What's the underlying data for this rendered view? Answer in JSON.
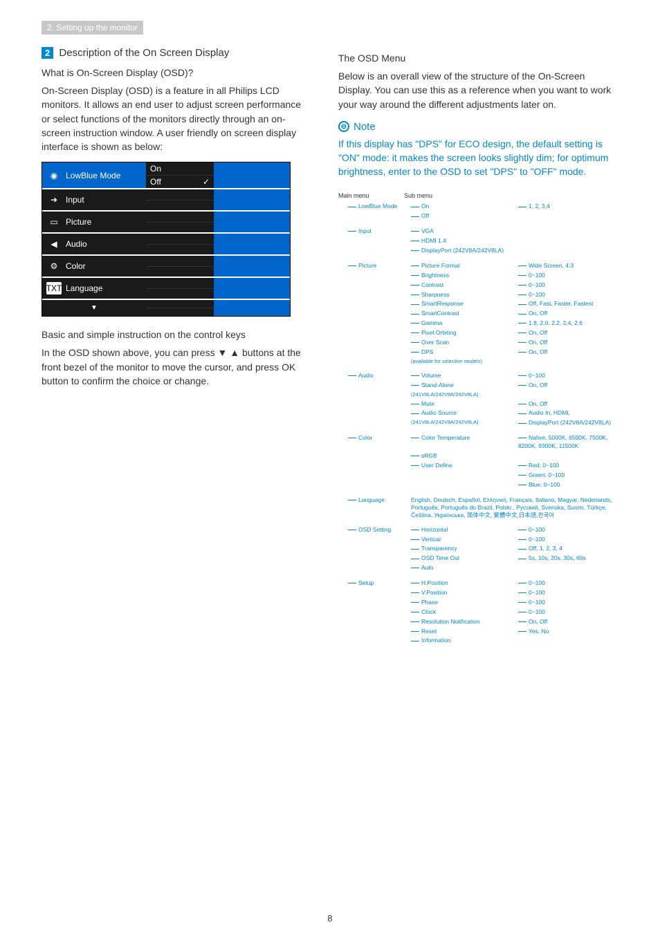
{
  "header": {
    "breadcrumb": "2. Setting up the monitor"
  },
  "left": {
    "section_number": "2",
    "section_title": "Description of the On Screen Display",
    "q_title": "What is On-Screen Display (OSD)?",
    "q_body": "On-Screen Display (OSD) is a feature in all Philips LCD monitors. It allows an end user to adjust screen performance or select functions of the monitors directly through an on-screen instruction window. A user friendly on screen display interface is shown as below:",
    "osd": {
      "rows": [
        {
          "label": "LowBlue Mode",
          "icon": "◉",
          "selected": true,
          "mid": [
            "On",
            "Off"
          ],
          "check_row": 1
        },
        {
          "label": "Input",
          "icon": "➜",
          "selected": false
        },
        {
          "label": "Picture",
          "icon": "▭",
          "selected": false
        },
        {
          "label": "Audio",
          "icon": "◀",
          "selected": false
        },
        {
          "label": "Color",
          "icon": "⚙",
          "selected": false
        },
        {
          "label": "Language",
          "icon": "TXT",
          "selected": false,
          "boxed": true
        },
        {
          "label": "",
          "icon": "▼",
          "selected": false,
          "arrow_only": true
        }
      ]
    },
    "basic_title": "Basic and simple instruction on the control keys",
    "basic_body_1": "In the OSD shown above, you can press ",
    "basic_body_arrows": "▼ ▲",
    "basic_body_2": " buttons at the front bezel of the monitor to move the cursor, and press OK button to confirm the choice or change."
  },
  "right": {
    "title": "The OSD Menu",
    "intro": "Below is an overall view of the structure of the On-Screen Display. You can use this as a reference when you want to work your way around the different adjustments later on.",
    "note_label": "Note",
    "note_body": "If this display has \"DPS\" for ECO design, the default setting is \"ON\" mode: it makes the screen looks slightly dim; for optimum brightness, enter to the OSD to set \"DPS\" to \"OFF\" mode.",
    "tree": {
      "hdr_main": "Main menu",
      "hdr_sub": "Sub menu",
      "groups": [
        {
          "main": "LowBlue Mode",
          "subs": [
            {
              "s": "On",
              "v": "1, 2, 3,4"
            },
            {
              "s": "Off",
              "v": ""
            }
          ]
        },
        {
          "main": "Input",
          "subs": [
            {
              "s": "VGA",
              "v": ""
            },
            {
              "s": "HDMI 1.4",
              "v": ""
            },
            {
              "s": "DisplayPort (242V8A/242V8LA)",
              "v": ""
            }
          ]
        },
        {
          "main": "Picture",
          "subs": [
            {
              "s": "Picture Format",
              "v": "Wide Screen, 4:3"
            },
            {
              "s": "Brightness",
              "v": "0~100"
            },
            {
              "s": "Contrast",
              "v": "0~100"
            },
            {
              "s": "Sharpness",
              "v": "0~100"
            },
            {
              "s": "SmartResponse",
              "v": "Off, Fast, Faster, Fastest"
            },
            {
              "s": "SmartContrast",
              "v": "On, Off"
            },
            {
              "s": "Gamma",
              "v": "1.8, 2.0, 2.2, 2.4, 2.6"
            },
            {
              "s": "Pixel Orbiting",
              "v": "On, Off"
            },
            {
              "s": "Over Scan",
              "v": "On, Off"
            },
            {
              "s": "DPS",
              "v": "On, Off"
            },
            {
              "s": "(available for selective models)",
              "v": "",
              "tiny": true
            }
          ]
        },
        {
          "main": "Audio",
          "subs": [
            {
              "s": "Volume",
              "v": "0~100"
            },
            {
              "s": "Stand-Alone",
              "v": "On, Off"
            },
            {
              "s": "(241V8LA/242V8A/242V8LA)",
              "v": "",
              "tiny": true
            },
            {
              "s": "Mute",
              "v": "On, Off"
            },
            {
              "s": "Audio Source",
              "v": "Audio In, HDMI,"
            },
            {
              "s": "(241V8LA/242V8A/242V8LA)",
              "v": "DisplayPort (242V8A/242V8LA)",
              "tiny": true
            }
          ]
        },
        {
          "main": "Color",
          "subs": [
            {
              "s": "Color Temperature",
              "v": "Native, 5000K, 6500K, 7500K, 8200K, 9300K, 11500K"
            },
            {
              "s": "sRGB",
              "v": ""
            },
            {
              "s": "User Define",
              "v": "Red: 0~100"
            },
            {
              "s": "",
              "v": "Green: 0~100"
            },
            {
              "s": "",
              "v": "Blue: 0~100"
            }
          ]
        },
        {
          "main": "Language",
          "subs": [
            {
              "s": "English, Deutsch, Español, Ελληνική, Français, Italiano, Magyar, Nederlands, Português, Português do Brazil, Polski , Русский, Svenska, Suomi, Türkçe, Čeština, Українська, 简体中文, 繁體中文,日本語,한국어",
              "v": "",
              "wrap": true
            }
          ]
        },
        {
          "main": "OSD Setting",
          "subs": [
            {
              "s": "Horizontal",
              "v": "0~100"
            },
            {
              "s": "Vertical",
              "v": "0~100"
            },
            {
              "s": "Transparency",
              "v": "Off, 1, 2, 3, 4"
            },
            {
              "s": "OSD Time Out",
              "v": "5s, 10s, 20s, 30s, 60s"
            },
            {
              "s": "Auto",
              "v": ""
            }
          ]
        },
        {
          "main": "Setup",
          "subs": [
            {
              "s": "H.Position",
              "v": "0~100"
            },
            {
              "s": "V.Position",
              "v": "0~100"
            },
            {
              "s": "Phase",
              "v": "0~100"
            },
            {
              "s": "Clock",
              "v": "0~100"
            },
            {
              "s": "Resolution Notification",
              "v": "On, Off"
            },
            {
              "s": "Reset",
              "v": "Yes, No"
            },
            {
              "s": "Information",
              "v": ""
            }
          ]
        }
      ]
    }
  },
  "page_number": "8"
}
